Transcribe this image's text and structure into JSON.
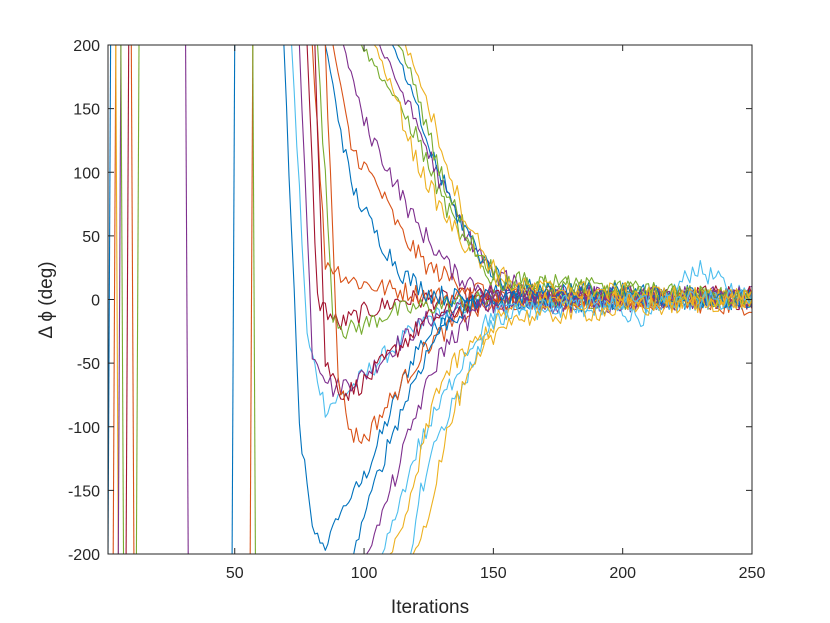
{
  "chart_data": {
    "type": "line",
    "title": "",
    "xlabel": "Iterations",
    "ylabel": "Δ ϕ (deg)",
    "xlim": [
      1,
      250
    ],
    "ylim": [
      -200,
      200
    ],
    "xticks": [
      50,
      100,
      150,
      200,
      250
    ],
    "yticks": [
      200,
      150,
      100,
      50,
      0,
      -50,
      -100,
      -150,
      -200
    ],
    "xtick_labels": [
      "50",
      "100",
      "150",
      "200",
      "250"
    ],
    "ytick_labels": [
      "200",
      "150",
      "100",
      "50",
      "0",
      "-50",
      "-100",
      "-150",
      "-200"
    ],
    "grid": false,
    "legend": "none",
    "box": true,
    "colors": [
      "#0072BD",
      "#D95319",
      "#EDB120",
      "#7E2F8E",
      "#77AC30",
      "#4DBEEE",
      "#A2142F"
    ],
    "noise_amplitude_deg": 8,
    "series": [
      {
        "color": "#0072BD",
        "points": [
          [
            1,
            -200
          ],
          [
            2,
            200
          ]
        ]
      },
      {
        "color": "#D95319",
        "points": [
          [
            3,
            -200
          ],
          [
            4,
            200
          ]
        ]
      },
      {
        "color": "#EDB120",
        "points": [
          [
            4,
            200
          ],
          [
            5,
            -200
          ]
        ]
      },
      {
        "color": "#7E2F8E",
        "points": [
          [
            5,
            -200
          ],
          [
            6,
            200
          ]
        ]
      },
      {
        "color": "#77AC30",
        "points": [
          [
            6,
            200
          ],
          [
            7,
            -200
          ]
        ]
      },
      {
        "color": "#A2142F",
        "points": [
          [
            8,
            -200
          ],
          [
            9,
            200
          ]
        ]
      },
      {
        "color": "#D95319",
        "points": [
          [
            10,
            200
          ],
          [
            11,
            -200
          ]
        ]
      },
      {
        "color": "#77AC30",
        "points": [
          [
            12,
            -200
          ],
          [
            13,
            200
          ]
        ]
      },
      {
        "color": "#7E2F8E",
        "points": [
          [
            31,
            200
          ],
          [
            32,
            -200
          ]
        ]
      },
      {
        "color": "#0072BD",
        "points": [
          [
            49,
            -200
          ],
          [
            50,
            200
          ]
        ]
      },
      {
        "color": "#D95319",
        "points": [
          [
            56,
            -200
          ],
          [
            57,
            200
          ]
        ]
      },
      {
        "color": "#77AC30",
        "points": [
          [
            57,
            200
          ],
          [
            58,
            -200
          ]
        ]
      },
      {
        "color": "#0072BD",
        "points": [
          [
            69,
            200
          ],
          [
            75,
            -100
          ],
          [
            80,
            -180
          ],
          [
            85,
            -195
          ],
          [
            90,
            -170
          ],
          [
            100,
            -140
          ],
          [
            110,
            -90
          ],
          [
            120,
            -40
          ],
          [
            135,
            -5
          ],
          [
            150,
            5
          ],
          [
            175,
            0
          ],
          [
            200,
            -5
          ],
          [
            225,
            5
          ],
          [
            250,
            0
          ]
        ]
      },
      {
        "color": "#4DBEEE",
        "points": [
          [
            72,
            200
          ],
          [
            78,
            -30
          ],
          [
            85,
            -85
          ],
          [
            92,
            -75
          ],
          [
            100,
            -60
          ],
          [
            110,
            -40
          ],
          [
            125,
            -15
          ],
          [
            145,
            0
          ],
          [
            175,
            5
          ],
          [
            210,
            -15
          ],
          [
            228,
            25
          ],
          [
            250,
            0
          ]
        ]
      },
      {
        "color": "#7E2F8E",
        "points": [
          [
            75,
            200
          ],
          [
            80,
            -40
          ],
          [
            88,
            -70
          ],
          [
            100,
            -60
          ],
          [
            110,
            -40
          ],
          [
            125,
            -15
          ],
          [
            150,
            0
          ],
          [
            200,
            0
          ],
          [
            250,
            5
          ]
        ]
      },
      {
        "color": "#A2142F",
        "points": [
          [
            78,
            200
          ],
          [
            82,
            0
          ],
          [
            90,
            -20
          ],
          [
            100,
            -10
          ],
          [
            115,
            0
          ],
          [
            130,
            0
          ],
          [
            160,
            5
          ],
          [
            200,
            0
          ],
          [
            250,
            0
          ]
        ]
      },
      {
        "color": "#D95319",
        "points": [
          [
            80,
            200
          ],
          [
            85,
            30
          ],
          [
            95,
            15
          ],
          [
            105,
            10
          ],
          [
            120,
            5
          ],
          [
            140,
            0
          ],
          [
            200,
            0
          ],
          [
            250,
            -5
          ]
        ]
      },
      {
        "color": "#A2142F",
        "points": [
          [
            81,
            200
          ],
          [
            85,
            -50
          ],
          [
            92,
            -75
          ],
          [
            100,
            -65
          ],
          [
            112,
            -40
          ],
          [
            125,
            -15
          ],
          [
            150,
            0
          ],
          [
            250,
            5
          ]
        ]
      },
      {
        "color": "#77AC30",
        "points": [
          [
            82,
            200
          ],
          [
            88,
            -10
          ],
          [
            93,
            -25
          ],
          [
            100,
            -20
          ],
          [
            110,
            -10
          ],
          [
            125,
            -5
          ],
          [
            150,
            0
          ],
          [
            250,
            0
          ]
        ]
      },
      {
        "color": "#0072BD",
        "points": [
          [
            85,
            200
          ],
          [
            95,
            90
          ],
          [
            105,
            50
          ],
          [
            115,
            20
          ],
          [
            125,
            5
          ],
          [
            140,
            0
          ],
          [
            200,
            0
          ],
          [
            250,
            0
          ]
        ]
      },
      {
        "color": "#D95319",
        "points": [
          [
            88,
            200
          ],
          [
            95,
            120
          ],
          [
            105,
            90
          ],
          [
            115,
            50
          ],
          [
            125,
            25
          ],
          [
            140,
            10
          ],
          [
            160,
            0
          ],
          [
            250,
            0
          ]
        ]
      },
      {
        "color": "#D95319",
        "points": [
          [
            85,
            200
          ],
          [
            90,
            -60
          ],
          [
            95,
            -105
          ],
          [
            100,
            -110
          ],
          [
            110,
            -80
          ],
          [
            125,
            -35
          ],
          [
            140,
            -10
          ],
          [
            160,
            0
          ],
          [
            250,
            0
          ]
        ]
      },
      {
        "color": "#7E2F8E",
        "points": [
          [
            92,
            200
          ],
          [
            100,
            140
          ],
          [
            110,
            100
          ],
          [
            120,
            60
          ],
          [
            135,
            20
          ],
          [
            150,
            5
          ],
          [
            250,
            0
          ]
        ]
      },
      {
        "color": "#0072BD",
        "points": [
          [
            96,
            -200
          ],
          [
            100,
            -170
          ],
          [
            110,
            -110
          ],
          [
            120,
            -60
          ],
          [
            130,
            -20
          ],
          [
            145,
            0
          ],
          [
            250,
            0
          ]
        ]
      },
      {
        "color": "#77AC30",
        "points": [
          [
            99,
            200
          ],
          [
            110,
            165
          ],
          [
            120,
            130
          ],
          [
            130,
            80
          ],
          [
            140,
            40
          ],
          [
            150,
            15
          ],
          [
            250,
            0
          ]
        ]
      },
      {
        "color": "#7E2F8E",
        "points": [
          [
            101,
            -200
          ],
          [
            105,
            -180
          ],
          [
            112,
            -140
          ],
          [
            120,
            -90
          ],
          [
            130,
            -40
          ],
          [
            145,
            -5
          ],
          [
            250,
            0
          ]
        ]
      },
      {
        "color": "#EDB120",
        "points": [
          [
            104,
            200
          ],
          [
            112,
            160
          ],
          [
            120,
            110
          ],
          [
            130,
            70
          ],
          [
            140,
            40
          ],
          [
            150,
            20
          ],
          [
            160,
            5
          ],
          [
            250,
            0
          ]
        ]
      },
      {
        "color": "#4DBEEE",
        "points": [
          [
            107,
            -200
          ],
          [
            112,
            -170
          ],
          [
            120,
            -120
          ],
          [
            130,
            -80
          ],
          [
            140,
            -40
          ],
          [
            150,
            -10
          ],
          [
            250,
            0
          ]
        ]
      },
      {
        "color": "#7E2F8E",
        "points": [
          [
            106,
            200
          ],
          [
            113,
            170
          ],
          [
            120,
            140
          ],
          [
            130,
            90
          ],
          [
            140,
            50
          ],
          [
            150,
            20
          ],
          [
            165,
            5
          ],
          [
            250,
            0
          ]
        ]
      },
      {
        "color": "#EDB120",
        "points": [
          [
            110,
            -200
          ],
          [
            115,
            -180
          ],
          [
            120,
            -140
          ],
          [
            128,
            -70
          ],
          [
            135,
            -50
          ],
          [
            145,
            -30
          ],
          [
            155,
            -10
          ],
          [
            170,
            0
          ],
          [
            250,
            0
          ]
        ]
      },
      {
        "color": "#0072BD",
        "points": [
          [
            111,
            200
          ],
          [
            118,
            165
          ],
          [
            125,
            120
          ],
          [
            135,
            70
          ],
          [
            145,
            35
          ],
          [
            155,
            10
          ],
          [
            250,
            0
          ]
        ]
      },
      {
        "color": "#77AC30",
        "points": [
          [
            113,
            200
          ],
          [
            118,
            180
          ],
          [
            125,
            130
          ],
          [
            133,
            80
          ],
          [
            143,
            40
          ],
          [
            153,
            15
          ],
          [
            250,
            0
          ]
        ]
      },
      {
        "color": "#EDB120",
        "points": [
          [
            116,
            200
          ],
          [
            122,
            170
          ],
          [
            130,
            120
          ],
          [
            138,
            70
          ],
          [
            148,
            30
          ],
          [
            158,
            10
          ],
          [
            250,
            0
          ]
        ]
      },
      {
        "color": "#4DBEEE",
        "points": [
          [
            118,
            -200
          ],
          [
            122,
            -150
          ],
          [
            128,
            -110
          ],
          [
            135,
            -80
          ],
          [
            142,
            -50
          ],
          [
            150,
            -20
          ],
          [
            160,
            -5
          ],
          [
            250,
            0
          ]
        ]
      },
      {
        "color": "#EDB120",
        "points": [
          [
            119,
            -200
          ],
          [
            125,
            -170
          ],
          [
            130,
            -120
          ],
          [
            136,
            -80
          ],
          [
            145,
            -45
          ],
          [
            155,
            -15
          ],
          [
            250,
            0
          ]
        ]
      }
    ]
  }
}
